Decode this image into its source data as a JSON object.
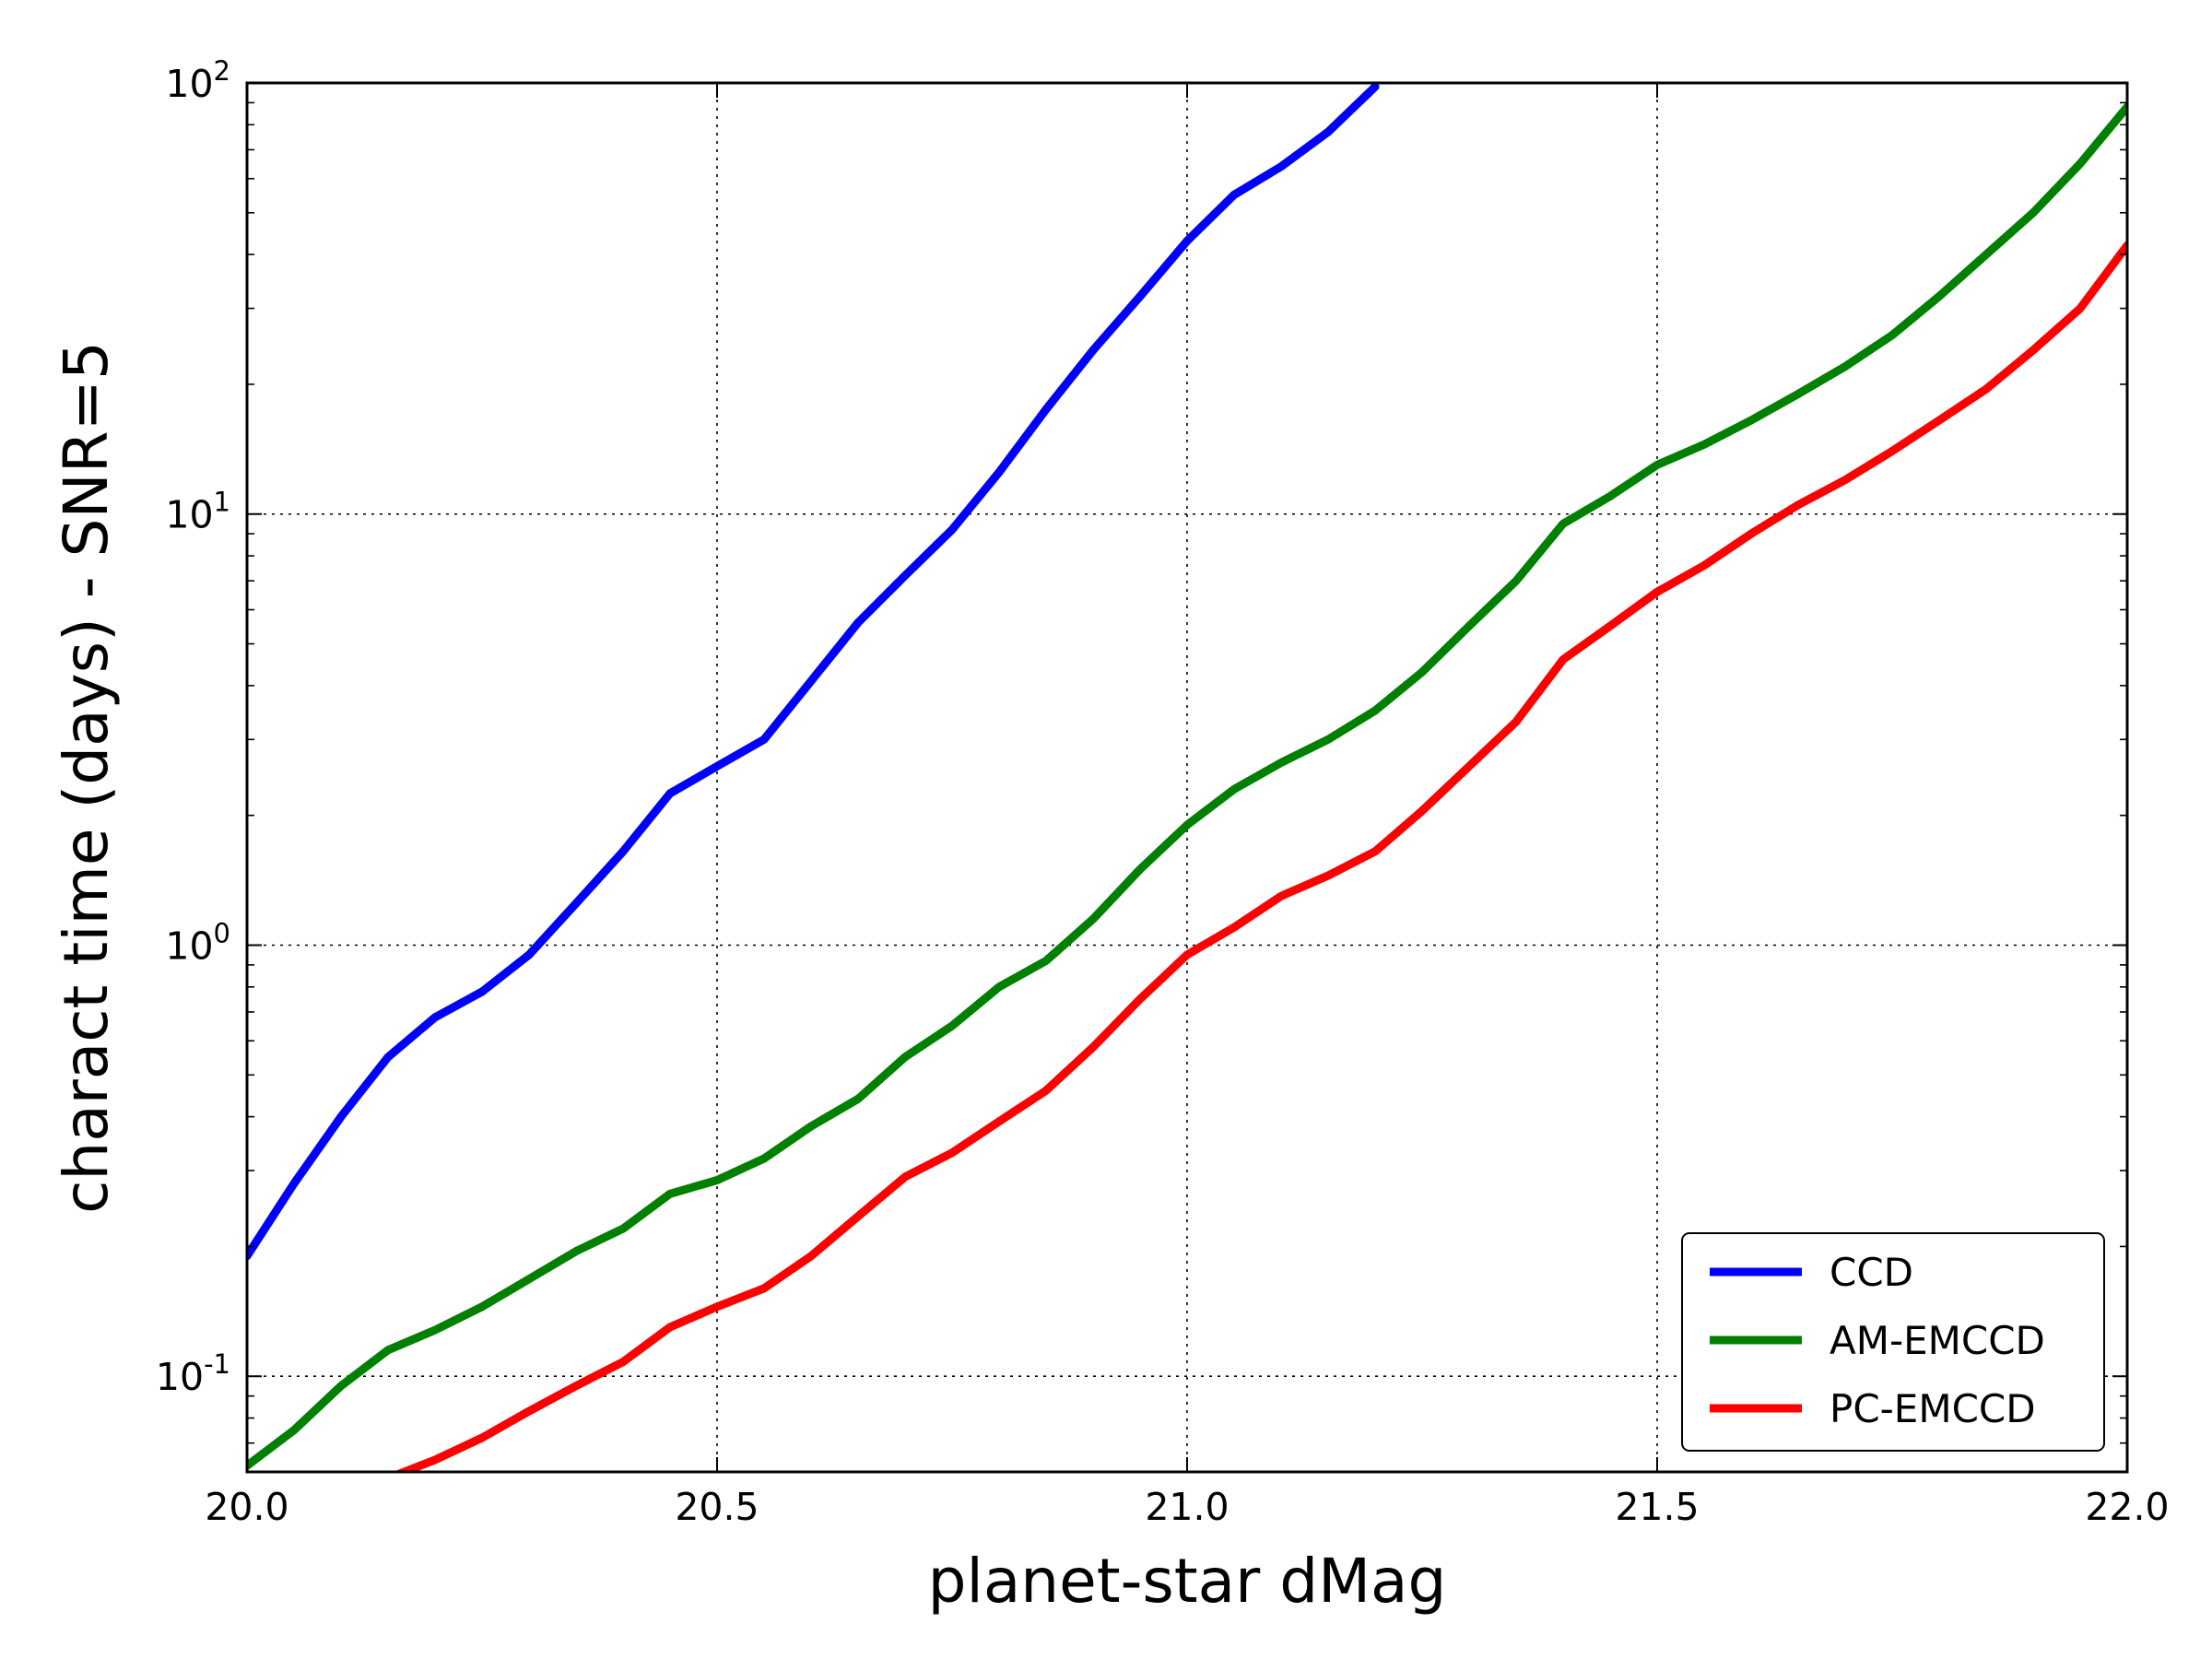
{
  "chart_data": {
    "type": "line",
    "xlabel": "planet-star dMag",
    "ylabel": "charact time (days) - SNR=5",
    "xlim": [
      20.0,
      22.0
    ],
    "ylim": [
      0.06,
      100
    ],
    "yscale": "log",
    "grid": true,
    "legend_position": "bottom-right",
    "x_ticks": [
      "20.0",
      "20.5",
      "21.0",
      "21.5",
      "22.0"
    ],
    "y_ticks": [
      {
        "base": "10",
        "exp": "-1"
      },
      {
        "base": "10",
        "exp": "0"
      },
      {
        "base": "10",
        "exp": "1"
      },
      {
        "base": "10",
        "exp": "2"
      }
    ],
    "series": [
      {
        "name": "CCD",
        "color": "#0000ff",
        "x": [
          20.0,
          20.05,
          20.1,
          20.15,
          20.2,
          20.25,
          20.3,
          20.35,
          20.4,
          20.45,
          20.5,
          20.55,
          20.6,
          20.65,
          20.7,
          20.75,
          20.8,
          20.85,
          20.9,
          20.95,
          21.0,
          21.05,
          21.1,
          21.15,
          21.2
        ],
        "values": [
          0.19,
          0.28,
          0.4,
          0.55,
          0.68,
          0.78,
          0.95,
          1.25,
          1.65,
          2.25,
          2.6,
          3.0,
          4.1,
          5.6,
          7.2,
          9.2,
          12.5,
          17.5,
          24.0,
          32.0,
          43.0,
          55.0,
          64.0,
          77.0,
          98.0
        ]
      },
      {
        "name": "AM-EMCCD",
        "color": "#008000",
        "x": [
          20.0,
          20.05,
          20.1,
          20.15,
          20.2,
          20.25,
          20.3,
          20.35,
          20.4,
          20.45,
          20.5,
          20.55,
          20.6,
          20.65,
          20.7,
          20.75,
          20.8,
          20.85,
          20.9,
          20.95,
          21.0,
          21.05,
          21.1,
          21.15,
          21.2,
          21.25,
          21.3,
          21.35,
          21.4,
          21.45,
          21.5,
          21.55,
          21.6,
          21.65,
          21.7,
          21.75,
          21.8,
          21.85,
          21.9,
          21.95,
          22.0
        ],
        "values": [
          0.062,
          0.075,
          0.095,
          0.115,
          0.128,
          0.145,
          0.168,
          0.195,
          0.22,
          0.265,
          0.285,
          0.32,
          0.38,
          0.44,
          0.55,
          0.65,
          0.8,
          0.92,
          1.15,
          1.5,
          1.9,
          2.3,
          2.65,
          3.0,
          3.5,
          4.3,
          5.5,
          7.0,
          9.5,
          11.0,
          13.0,
          14.5,
          16.5,
          19.0,
          22.0,
          26.0,
          32.0,
          40.0,
          50.0,
          65.0,
          88.0
        ]
      },
      {
        "name": "PC-EMCCD",
        "color": "#ff0000",
        "x": [
          20.15,
          20.2,
          20.25,
          20.3,
          20.35,
          20.4,
          20.45,
          20.5,
          20.55,
          20.6,
          20.65,
          20.7,
          20.75,
          20.8,
          20.85,
          20.9,
          20.95,
          21.0,
          21.05,
          21.1,
          21.15,
          21.2,
          21.25,
          21.3,
          21.35,
          21.4,
          21.45,
          21.5,
          21.55,
          21.6,
          21.65,
          21.7,
          21.75,
          21.8,
          21.85,
          21.9,
          21.95,
          22.0
        ],
        "values": [
          0.058,
          0.064,
          0.072,
          0.083,
          0.095,
          0.108,
          0.13,
          0.145,
          0.16,
          0.19,
          0.235,
          0.29,
          0.33,
          0.39,
          0.46,
          0.58,
          0.75,
          0.95,
          1.1,
          1.3,
          1.45,
          1.65,
          2.05,
          2.6,
          3.3,
          4.6,
          5.5,
          6.6,
          7.6,
          9.0,
          10.5,
          12.0,
          14.0,
          16.5,
          19.5,
          24.0,
          30.0,
          42.0
        ]
      }
    ]
  }
}
